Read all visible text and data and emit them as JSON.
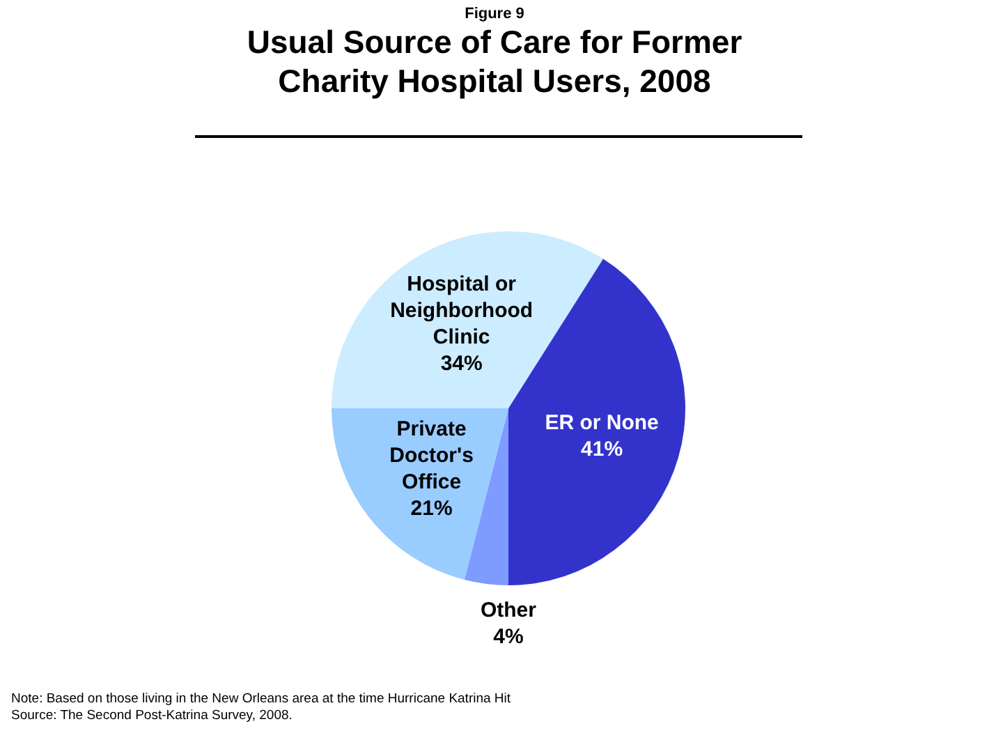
{
  "chart_data": {
    "type": "pie",
    "subtitle": "Figure 9",
    "title": "Usual Source of Care for Former Charity Hospital Users, 2008",
    "categories": [
      "Other",
      "Private Doctor's Office",
      "Hospital or Neighborhood Clinic",
      "ER or None"
    ],
    "values": [
      4,
      21,
      34,
      41
    ],
    "value_labels": [
      "4%",
      "21%",
      "34%",
      "41%"
    ],
    "colors": [
      "#7f9bff",
      "#99ccff",
      "#ccecff",
      "#3333cc"
    ],
    "legend": false,
    "annotations": [
      "Note: Based on those living in the New Orleans area at the time Hurricane Katrina Hit",
      "Source: The Second Post-Katrina Survey, 2008."
    ]
  }
}
